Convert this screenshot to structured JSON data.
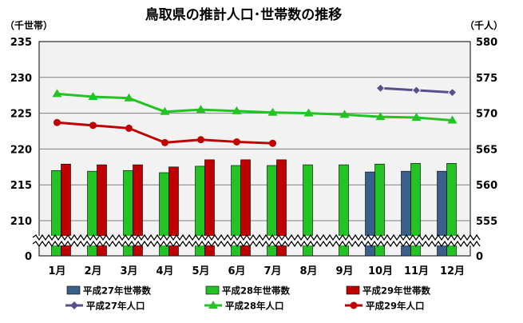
{
  "chart_data": {
    "type": "bar+line",
    "title": "鳥取県の推計人口･世帯数の推移",
    "left_axis_unit": "（千世帯）",
    "right_axis_unit": "（千人）",
    "categories": [
      "1月",
      "2月",
      "3月",
      "4月",
      "5月",
      "6月",
      "7月",
      "8月",
      "9月",
      "10月",
      "11月",
      "12月"
    ],
    "left_axis": {
      "ticks": [
        "235",
        "230",
        "225",
        "220",
        "215",
        "210",
        "0"
      ],
      "ylim": [
        207,
        235
      ],
      "break": true
    },
    "right_axis": {
      "ticks": [
        "580",
        "575",
        "570",
        "565",
        "560",
        "555",
        "0"
      ],
      "ylim": [
        552,
        580
      ],
      "break": true
    },
    "bar_series": [
      {
        "name": "平成27年世帯数",
        "color": "#3a5f8a",
        "values": [
          null,
          null,
          null,
          null,
          null,
          null,
          null,
          null,
          null,
          216.8,
          216.9,
          216.9
        ]
      },
      {
        "name": "平成28年世帯数",
        "color": "#22c322",
        "values": [
          217.0,
          216.9,
          217.0,
          216.7,
          217.6,
          217.7,
          217.7,
          217.8,
          217.8,
          217.9,
          218.0,
          218.0
        ]
      },
      {
        "name": "平成29年世帯数",
        "color": "#c00000",
        "values": [
          217.9,
          217.8,
          217.8,
          217.5,
          218.5,
          218.5,
          218.5,
          null,
          null,
          null,
          null,
          null
        ]
      }
    ],
    "line_series": [
      {
        "name": "平成27年人口",
        "color": "#5a4e8a",
        "marker": "diamond",
        "values": [
          null,
          null,
          null,
          null,
          null,
          null,
          null,
          null,
          null,
          573.5,
          573.2,
          572.9
        ]
      },
      {
        "name": "平成28年人口",
        "color": "#22c322",
        "marker": "triangle",
        "values": [
          572.7,
          572.3,
          572.1,
          570.2,
          570.5,
          570.3,
          570.1,
          570.0,
          569.8,
          569.5,
          569.4,
          569.0
        ]
      },
      {
        "name": "平成29年人口",
        "color": "#c00000",
        "marker": "circle",
        "values": [
          568.7,
          568.3,
          567.9,
          565.9,
          566.3,
          566.0,
          565.8,
          null,
          null,
          null,
          null,
          null
        ]
      }
    ]
  }
}
